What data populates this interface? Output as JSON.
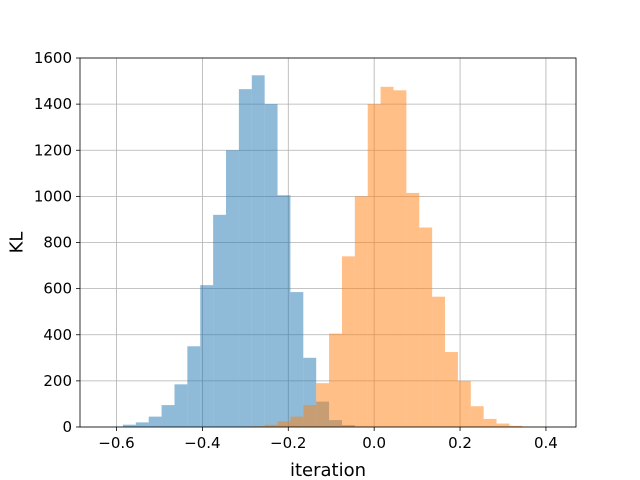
{
  "chart_data": {
    "type": "histogram",
    "xlabel": "iteration",
    "ylabel": "KL",
    "xlim": [
      -0.685,
      0.47
    ],
    "ylim": [
      0,
      1600
    ],
    "xticks": [
      -0.6,
      -0.4,
      -0.2,
      0.0,
      0.2,
      0.4
    ],
    "xtick_labels": [
      "−0.6",
      "−0.4",
      "−0.2",
      "0.0",
      "0.2",
      "0.4"
    ],
    "yticks": [
      0,
      200,
      400,
      600,
      800,
      1000,
      1200,
      1400,
      1600
    ],
    "ytick_labels": [
      "0",
      "200",
      "400",
      "600",
      "800",
      "1000",
      "1200",
      "1400",
      "1600"
    ],
    "grid": true,
    "series": [
      {
        "color": "#1f77b4",
        "opacity": 0.5,
        "bin_width": 0.03,
        "bin_start": -0.615,
        "counts": [
          2,
          10,
          20,
          45,
          95,
          185,
          350,
          615,
          920,
          1200,
          1465,
          1525,
          1400,
          1005,
          585,
          300,
          110,
          30,
          8,
          2
        ]
      },
      {
        "color": "#ff7f0e",
        "opacity": 0.5,
        "bin_width": 0.03,
        "bin_start": -0.285,
        "counts": [
          3,
          10,
          25,
          45,
          95,
          190,
          405,
          740,
          1000,
          1400,
          1475,
          1460,
          1015,
          865,
          565,
          325,
          200,
          90,
          35,
          15,
          5,
          2,
          1
        ]
      }
    ]
  }
}
